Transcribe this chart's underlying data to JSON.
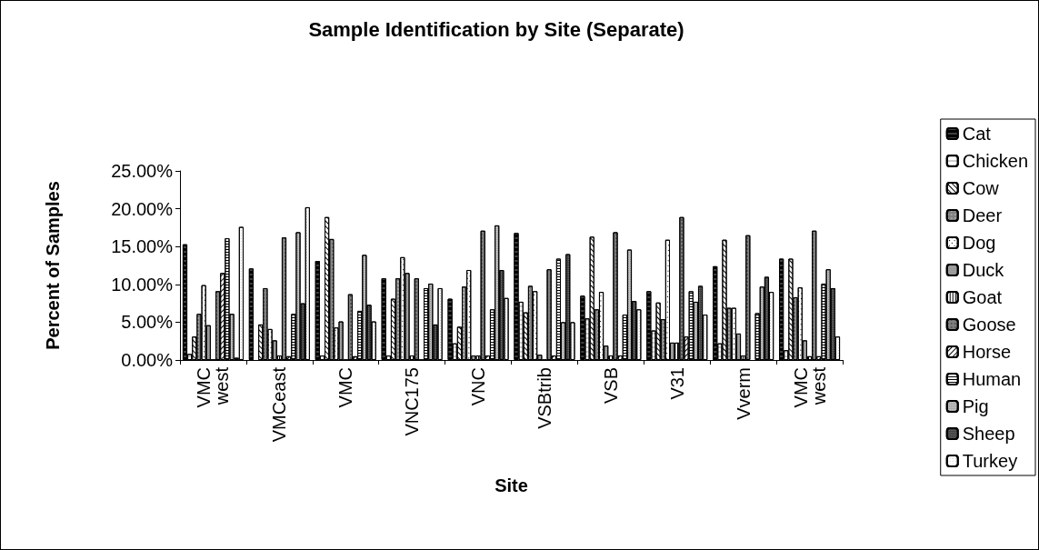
{
  "chart_data": {
    "type": "bar",
    "title": "Sample Identification by Site (Separate)",
    "xlabel": "Site",
    "ylabel": "Percent of Samples",
    "categories": [
      "VMC west",
      "VMCeast",
      "VMC",
      "VNC175",
      "VNC",
      "VSBtrib",
      "VSB",
      "V31",
      "Vverm",
      "VMC west"
    ],
    "ylim": [
      0,
      25
    ],
    "yticks": [
      {
        "value": 0,
        "label": "0.00%"
      },
      {
        "value": 5,
        "label": "5.00%"
      },
      {
        "value": 10,
        "label": "10.00%"
      },
      {
        "value": 15,
        "label": "15.00%"
      },
      {
        "value": 20,
        "label": "20.00%"
      },
      {
        "value": 25,
        "label": "25.00%"
      }
    ],
    "grid": false,
    "legend": "right",
    "series": [
      {
        "name": "Cat",
        "color": "#000000",
        "values": [
          15.3,
          12.1,
          13.1,
          10.8,
          8.1,
          16.8,
          8.5,
          9.1,
          12.4,
          13.4
        ]
      },
      {
        "name": "Chicken",
        "color": "#ffffff",
        "values": [
          0.8,
          null,
          0.6,
          0.6,
          2.2,
          7.7,
          5.5,
          3.9,
          2.2,
          1.3
        ]
      },
      {
        "name": "Cow",
        "color": "#ffffff",
        "values": [
          3.1,
          4.7,
          18.9,
          8.1,
          4.4,
          6.3,
          16.3,
          7.6,
          15.9,
          13.4
        ]
      },
      {
        "name": "Deer",
        "color": "#808080",
        "values": [
          6.1,
          9.5,
          16.0,
          10.8,
          9.7,
          9.8,
          6.7,
          5.4,
          6.9,
          8.3
        ]
      },
      {
        "name": "Dog",
        "color": "#ffffff",
        "values": [
          9.9,
          4.1,
          4.3,
          13.6,
          11.9,
          9.1,
          9.0,
          15.9,
          6.9,
          9.6
        ]
      },
      {
        "name": "Duck",
        "color": "#a0a0a0",
        "values": [
          4.6,
          2.6,
          5.1,
          11.5,
          0.6,
          0.7,
          1.9,
          2.3,
          3.5,
          2.6
        ]
      },
      {
        "name": "Goat",
        "color": "#ffffff",
        "values": [
          0,
          0.6,
          0,
          0.6,
          0.6,
          0,
          0.6,
          2.3,
          0.6,
          0.5
        ]
      },
      {
        "name": "Goose",
        "color": "#808080",
        "values": [
          9.1,
          16.2,
          8.7,
          10.8,
          17.1,
          12.0,
          16.9,
          18.9,
          16.5,
          17.1
        ]
      },
      {
        "name": "Horse",
        "color": "#ffffff",
        "values": [
          11.5,
          0.5,
          0.5,
          0,
          0.6,
          0.6,
          0.6,
          3.1,
          null,
          0.5
        ]
      },
      {
        "name": "Human",
        "color": "#ffffff",
        "values": [
          16.1,
          6.1,
          6.5,
          9.5,
          6.7,
          13.4,
          6.0,
          9.1,
          6.2,
          10.1
        ]
      },
      {
        "name": "Pig",
        "color": "#c0c0c0",
        "values": [
          6.1,
          16.9,
          13.9,
          10.1,
          17.8,
          5.0,
          14.6,
          7.7,
          9.7,
          12.0
        ]
      },
      {
        "name": "Sheep",
        "color": "#404040",
        "values": [
          0.3,
          7.5,
          7.3,
          4.7,
          11.9,
          14.0,
          7.8,
          9.8,
          11.0,
          9.5
        ]
      },
      {
        "name": "Turkey",
        "color": "#ffffff",
        "values": [
          17.6,
          20.2,
          5.1,
          9.5,
          8.2,
          5.0,
          6.7,
          6.0,
          9.0,
          3.1
        ]
      }
    ]
  }
}
